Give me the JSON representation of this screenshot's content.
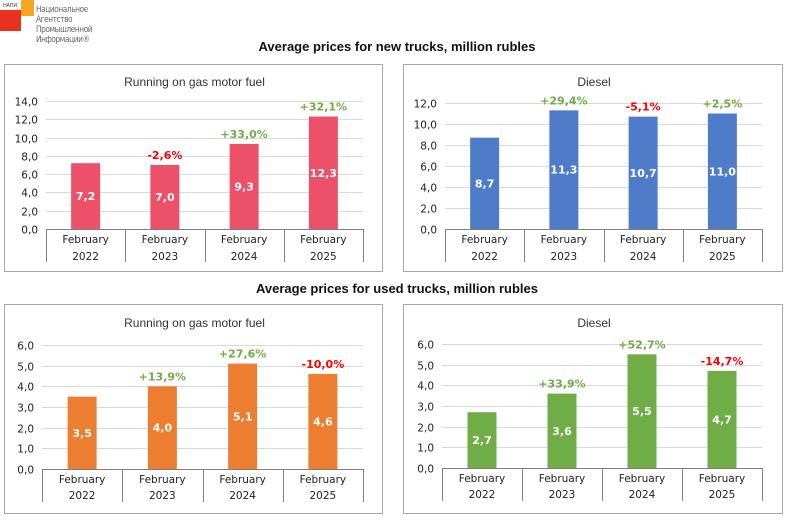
{
  "logo": {
    "abbreviation": "НАПИ",
    "name_lines": [
      "Национальное",
      "Агентство",
      "Промышленной",
      "Информации®"
    ]
  },
  "sections": [
    {
      "title": "Average prices for new trucks, million rubles"
    },
    {
      "title": "Average prices for used trucks, million rubles"
    }
  ],
  "colors": {
    "gas_new": "#ec5169",
    "diesel_new": "#4f7cc9",
    "gas_used": "#ed7d31",
    "diesel_used": "#70ad47",
    "positive_change": "#6fac46",
    "negative_change": "#ff0000",
    "gridline": "#d9d9d9",
    "axis": "#7f7f7f"
  },
  "chart_data": [
    {
      "type": "bar",
      "section": "new",
      "title": "Running on gas motor fuel",
      "categories": [
        [
          "February",
          "2022"
        ],
        [
          "February",
          "2023"
        ],
        [
          "February",
          "2024"
        ],
        [
          "February",
          "2025"
        ]
      ],
      "values": [
        7.2,
        7.0,
        9.3,
        12.3
      ],
      "value_labels": [
        "7,2",
        "7,0",
        "9,3",
        "12,3"
      ],
      "change_labels": [
        "",
        "-2,6%",
        "+33,0%",
        "+32,1%"
      ],
      "change_signs": [
        0,
        -1,
        1,
        1
      ],
      "ylim": [
        0,
        14
      ],
      "ystep": 2,
      "yticks": [
        "0,0",
        "2,0",
        "4,0",
        "6,0",
        "8,0",
        "10,0",
        "12,0",
        "14,0"
      ],
      "color_key": "gas_new",
      "grid": true,
      "xlabel": "",
      "ylabel": ""
    },
    {
      "type": "bar",
      "section": "new",
      "title": "Diesel",
      "categories": [
        [
          "February",
          "2022"
        ],
        [
          "February",
          "2023"
        ],
        [
          "February",
          "2024"
        ],
        [
          "February",
          "2025"
        ]
      ],
      "values": [
        8.7,
        11.3,
        10.7,
        11.0
      ],
      "value_labels": [
        "8,7",
        "11,3",
        "10,7",
        "11,0"
      ],
      "change_labels": [
        "",
        "+29,4%",
        "-5,1%",
        "+2,5%"
      ],
      "change_signs": [
        0,
        1,
        -1,
        1
      ],
      "ylim": [
        0,
        12
      ],
      "ystep": 2,
      "yticks": [
        "0,0",
        "2,0",
        "4,0",
        "6,0",
        "8,0",
        "10,0",
        "12,0"
      ],
      "color_key": "diesel_new",
      "grid": true,
      "xlabel": "",
      "ylabel": ""
    },
    {
      "type": "bar",
      "section": "used",
      "title": "Running on gas motor fuel",
      "categories": [
        [
          "February",
          "2022"
        ],
        [
          "February",
          "2023"
        ],
        [
          "February",
          "2024"
        ],
        [
          "February",
          "2025"
        ]
      ],
      "values": [
        3.5,
        4.0,
        5.1,
        4.6
      ],
      "value_labels": [
        "3,5",
        "4,0",
        "5,1",
        "4,6"
      ],
      "change_labels": [
        "",
        "+13,9%",
        "+27,6%",
        "-10,0%"
      ],
      "change_signs": [
        0,
        1,
        1,
        -1
      ],
      "ylim": [
        0,
        6
      ],
      "ystep": 1,
      "yticks": [
        "0,0",
        "1,0",
        "2,0",
        "3,0",
        "4,0",
        "5,0",
        "6,0"
      ],
      "color_key": "gas_used",
      "grid": true,
      "xlabel": "",
      "ylabel": ""
    },
    {
      "type": "bar",
      "section": "used",
      "title": "Diesel",
      "categories": [
        [
          "February",
          "2022"
        ],
        [
          "February",
          "2023"
        ],
        [
          "February",
          "2024"
        ],
        [
          "February",
          "2025"
        ]
      ],
      "values": [
        2.7,
        3.6,
        5.5,
        4.7
      ],
      "value_labels": [
        "2,7",
        "3,6",
        "5,5",
        "4,7"
      ],
      "change_labels": [
        "",
        "+33,9%",
        "+52,7%",
        "-14,7%"
      ],
      "change_signs": [
        0,
        1,
        1,
        -1
      ],
      "ylim": [
        0,
        6
      ],
      "ystep": 1,
      "yticks": [
        "0,0",
        "1,0",
        "2,0",
        "3,0",
        "4,0",
        "5,0",
        "6,0"
      ],
      "color_key": "diesel_used",
      "grid": true,
      "xlabel": "",
      "ylabel": ""
    }
  ]
}
